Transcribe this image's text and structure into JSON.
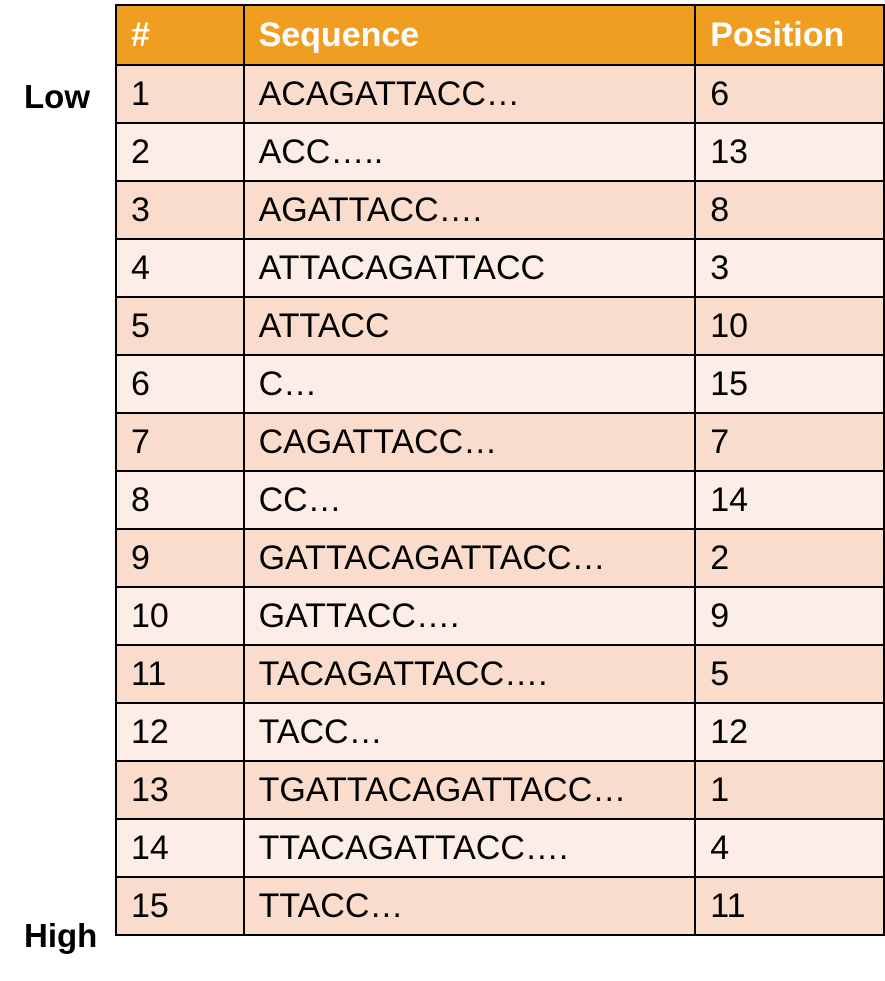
{
  "side_labels": {
    "low": "Low",
    "high": "High"
  },
  "colors": {
    "header_bg": "#f09e22",
    "header_text": "#ffffff",
    "row_odd_bg": "#f9dccc",
    "row_even_bg": "#fcede6",
    "border": "#000000"
  },
  "table": {
    "headers": [
      "#",
      "Sequence",
      "Position"
    ],
    "rows": [
      [
        "1",
        "ACAGATTACC…",
        "6"
      ],
      [
        "2",
        "ACC…..",
        "13"
      ],
      [
        "3",
        "AGATTACC….",
        "8"
      ],
      [
        "4",
        "ATTACAGATTACC",
        "3"
      ],
      [
        "5",
        "ATTACC",
        "10"
      ],
      [
        "6",
        "C…",
        "15"
      ],
      [
        "7",
        "CAGATTACC…",
        "7"
      ],
      [
        "8",
        "CC…",
        "14"
      ],
      [
        "9",
        "GATTACAGATTACC…",
        "2"
      ],
      [
        "10",
        "GATTACC….",
        "9"
      ],
      [
        "11",
        "TACAGATTACC….",
        "5"
      ],
      [
        "12",
        "TACC…",
        "12"
      ],
      [
        "13",
        "TGATTACAGATTACC…",
        "1"
      ],
      [
        "14",
        "TTACAGATTACC….",
        "4"
      ],
      [
        "15",
        "TTACC…",
        "11"
      ]
    ]
  }
}
